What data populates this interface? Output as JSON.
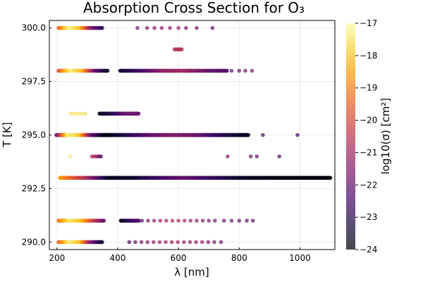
{
  "chart_data": {
    "type": "scatter",
    "title": "Absorption Cross Section for O₃",
    "xlabel": "λ [nm]",
    "ylabel": "T [K]",
    "xlim": [
      175,
      1115
    ],
    "ylim": [
      289.65,
      300.35
    ],
    "x_ticks": [
      200,
      400,
      600,
      800,
      1000
    ],
    "x_tick_labels": [
      "200",
      "400",
      "600",
      "800",
      "1000"
    ],
    "y_ticks": [
      290.0,
      292.5,
      295.0,
      297.5,
      300.0
    ],
    "y_tick_labels": [
      "290.0",
      "292.5",
      "295.0",
      "297.5",
      "300.0"
    ],
    "grid": true,
    "legend": "none",
    "colorbar": {
      "label": "log10(σ) [cm²]",
      "colormap": "inferno",
      "range": [
        -24,
        -17
      ],
      "ticks": [
        -24,
        -23,
        -22,
        -21,
        -20,
        -19,
        -18,
        -17
      ],
      "tick_labels": [
        "−24",
        "−23",
        "−22",
        "−21",
        "−20",
        "−19",
        "−18",
        "−17"
      ]
    },
    "series": [
      {
        "temperature": 300.0,
        "segments": [
          {
            "x_start": 205,
            "x_end": 350,
            "step": 2,
            "log_sigma": [
              -19.5,
              -17.2,
              -18.0,
              -21.5,
              -23.0
            ]
          }
        ],
        "points": [
          {
            "x": 465,
            "log_sigma": -21.7
          },
          {
            "x": 497,
            "log_sigma": -21.5
          },
          {
            "x": 521,
            "log_sigma": -21.3
          },
          {
            "x": 545,
            "log_sigma": -21.2
          },
          {
            "x": 572,
            "log_sigma": -21.2
          },
          {
            "x": 600,
            "log_sigma": -21.3
          },
          {
            "x": 625,
            "log_sigma": -21.5
          },
          {
            "x": 660,
            "log_sigma": -21.7
          },
          {
            "x": 712,
            "log_sigma": -22.0
          }
        ]
      },
      {
        "temperature": 299.0,
        "segments": [
          {
            "x_start": 587,
            "x_end": 613,
            "step": 3,
            "log_sigma": [
              -20.6,
              -20.6
            ]
          }
        ],
        "points": []
      },
      {
        "temperature": 298.0,
        "segments": [
          {
            "x_start": 205,
            "x_end": 368,
            "step": 2,
            "log_sigma": [
              -19.8,
              -17.2,
              -18.2,
              -22.0,
              -23.6
            ]
          },
          {
            "x_start": 408,
            "x_end": 760,
            "step": 2,
            "log_sigma": [
              -23.5,
              -22.5,
              -21.3,
              -21.0,
              -21.8,
              -22.3
            ]
          }
        ],
        "points": [
          {
            "x": 775,
            "log_sigma": -22.0
          },
          {
            "x": 800,
            "log_sigma": -22.0
          },
          {
            "x": 820,
            "log_sigma": -21.8
          },
          {
            "x": 842,
            "log_sigma": -21.7
          }
        ]
      },
      {
        "temperature": 296.0,
        "segments": [
          {
            "x_start": 245,
            "x_end": 295,
            "step": 12,
            "log_sigma": [
              -17.5,
              -17.6
            ]
          },
          {
            "x_start": 340,
            "x_end": 470,
            "step": 1.5,
            "log_sigma": [
              -23.6,
              -23.0,
              -22.0,
              -21.9
            ]
          }
        ],
        "points": []
      },
      {
        "temperature": 295.0,
        "segments": [
          {
            "x_start": 198,
            "x_end": 355,
            "step": 1,
            "log_sigma": [
              -22.0,
              -17.3,
              -17.8,
              -22.0,
              -23.8
            ]
          },
          {
            "x_start": 355,
            "x_end": 830,
            "step": 1,
            "log_sigma": [
              -23.9,
              -23.0,
              -22.0,
              -21.5,
              -22.0,
              -23.0,
              -23.6
            ]
          }
        ],
        "points": [
          {
            "x": 878,
            "log_sigma": -22.4
          },
          {
            "x": 992,
            "log_sigma": -22.5
          }
        ]
      },
      {
        "temperature": 294.0,
        "segments": [
          {
            "x_start": 315,
            "x_end": 345,
            "step": 5,
            "log_sigma": [
              -20.5,
              -21.0,
              -22.5
            ]
          }
        ],
        "points": [
          {
            "x": 243,
            "log_sigma": -17.4
          },
          {
            "x": 762,
            "log_sigma": -21.5
          },
          {
            "x": 838,
            "log_sigma": -21.8
          },
          {
            "x": 858,
            "log_sigma": -22.0
          },
          {
            "x": 932,
            "log_sigma": -22.3
          }
        ]
      },
      {
        "temperature": 293.0,
        "segments": [
          {
            "x_start": 210,
            "x_end": 1100,
            "step": 1,
            "log_sigma": [
              -18.5,
              -20.5,
              -23.6,
              -23.5,
              -22.6,
              -22.0,
              -22.6,
              -23.3,
              -23.7,
              -23.8,
              -23.8,
              -23.9
            ]
          }
        ],
        "points": []
      },
      {
        "temperature": 291.0,
        "segments": [
          {
            "x_start": 205,
            "x_end": 355,
            "step": 2,
            "log_sigma": [
              -19.2,
              -17.4,
              -18.0,
              -20.0,
              -22.0
            ]
          },
          {
            "x_start": 410,
            "x_end": 470,
            "step": 2,
            "log_sigma": [
              -23.8,
              -22.8,
              -22.3
            ]
          }
        ],
        "points": [
          {
            "x": 480,
            "log_sigma": -22.0
          },
          {
            "x": 500,
            "log_sigma": -21.5
          },
          {
            "x": 520,
            "log_sigma": -21.2
          },
          {
            "x": 540,
            "log_sigma": -21.0
          },
          {
            "x": 560,
            "log_sigma": -20.9
          },
          {
            "x": 580,
            "log_sigma": -20.8
          },
          {
            "x": 600,
            "log_sigma": -20.9
          },
          {
            "x": 620,
            "log_sigma": -21.0
          },
          {
            "x": 640,
            "log_sigma": -21.2
          },
          {
            "x": 660,
            "log_sigma": -21.3
          },
          {
            "x": 680,
            "log_sigma": -21.5
          },
          {
            "x": 700,
            "log_sigma": -21.6
          },
          {
            "x": 720,
            "log_sigma": -21.7
          },
          {
            "x": 750,
            "log_sigma": -21.8
          },
          {
            "x": 775,
            "log_sigma": -21.8
          },
          {
            "x": 800,
            "log_sigma": -21.9
          },
          {
            "x": 825,
            "log_sigma": -21.9
          },
          {
            "x": 845,
            "log_sigma": -22.0
          }
        ]
      },
      {
        "temperature": 290.0,
        "segments": [
          {
            "x_start": 205,
            "x_end": 350,
            "step": 2,
            "log_sigma": [
              -19.5,
              -17.3,
              -18.0,
              -21.5,
              -23.5
            ]
          }
        ],
        "points": [
          {
            "x": 438,
            "log_sigma": -22.5
          },
          {
            "x": 458,
            "log_sigma": -22.0
          },
          {
            "x": 478,
            "log_sigma": -21.7
          },
          {
            "x": 498,
            "log_sigma": -21.5
          },
          {
            "x": 518,
            "log_sigma": -21.3
          },
          {
            "x": 538,
            "log_sigma": -21.2
          },
          {
            "x": 558,
            "log_sigma": -21.1
          },
          {
            "x": 578,
            "log_sigma": -21.0
          },
          {
            "x": 598,
            "log_sigma": -21.0
          },
          {
            "x": 618,
            "log_sigma": -21.1
          },
          {
            "x": 638,
            "log_sigma": -21.2
          },
          {
            "x": 658,
            "log_sigma": -21.3
          },
          {
            "x": 678,
            "log_sigma": -21.4
          },
          {
            "x": 698,
            "log_sigma": -21.5
          },
          {
            "x": 718,
            "log_sigma": -21.6
          },
          {
            "x": 740,
            "log_sigma": -21.8
          }
        ]
      }
    ]
  }
}
